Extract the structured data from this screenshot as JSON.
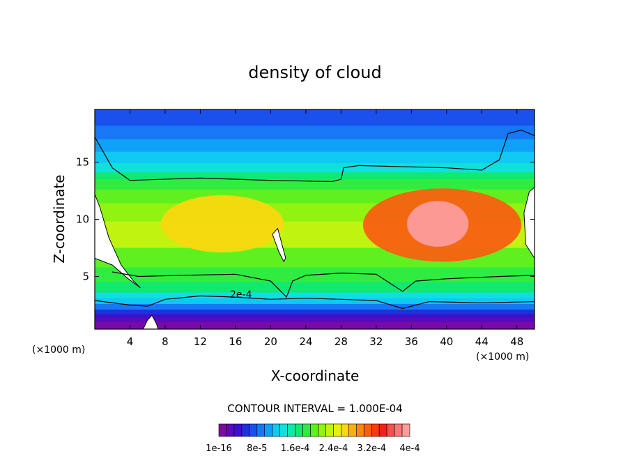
{
  "chart_data": {
    "type": "heatmap",
    "title": "density of cloud",
    "xlabel": "X-coordinate",
    "ylabel": "Z-coordinate",
    "x_unit": "(×1000 m)",
    "x_unit_right": "(×1000 m)",
    "xlim": [
      0,
      50
    ],
    "ylim": [
      0.4,
      19.6
    ],
    "x_ticks": [
      4,
      8,
      12,
      16,
      20,
      24,
      28,
      32,
      36,
      40,
      44,
      48
    ],
    "x_tick_labels": [
      "4",
      "8",
      "12",
      "16",
      "20",
      "24",
      "28",
      "32",
      "36",
      "40",
      "44",
      "48"
    ],
    "y_ticks": [
      5,
      10,
      15
    ],
    "y_tick_labels": [
      "5",
      "10",
      "15"
    ],
    "contour_label": "2e-4",
    "contour_interval_text": "CONTOUR INTERVAL = 1.000E-04",
    "colorbar": {
      "min": 0,
      "max": 0.0004,
      "tick_labels": [
        "1e-16",
        "8e-5",
        "1.6e-4",
        "2.4e-4",
        "3.2e-4",
        "4e-4"
      ],
      "colors": [
        "#7a0aa8",
        "#5a0aba",
        "#3a10cc",
        "#2030dc",
        "#1a50ec",
        "#1678f4",
        "#10a0f8",
        "#10c8f4",
        "#10e0dc",
        "#10e8a8",
        "#10e870",
        "#30ec40",
        "#60f020",
        "#90f410",
        "#c0f410",
        "#e8f010",
        "#f8d810",
        "#f8b010",
        "#f88810",
        "#f86010",
        "#f43c10",
        "#f02020",
        "#f45050",
        "#f87878",
        "#fc9c9c"
      ]
    },
    "layers": [
      {
        "z_top": 19.6,
        "value": 6e-05
      },
      {
        "z_top": 18.2,
        "value": 8e-05
      },
      {
        "z_top": 17.0,
        "value": 0.0001
      },
      {
        "z_top": 15.9,
        "value": 0.00012
      },
      {
        "z_top": 14.9,
        "value": 0.00014
      },
      {
        "z_top": 14.1,
        "value": 0.00016
      },
      {
        "z_top": 13.5,
        "value": 0.00018
      },
      {
        "z_top": 12.6,
        "value": 0.0002
      },
      {
        "z_top": 11.4,
        "value": 0.00022
      },
      {
        "z_top": 9.8,
        "value": 0.00024
      },
      {
        "z_top": 7.5,
        "value": 0.0002
      },
      {
        "z_top": 5.8,
        "value": 0.00018
      },
      {
        "z_top": 4.5,
        "value": 0.00016
      },
      {
        "z_top": 3.6,
        "value": 0.00014
      },
      {
        "z_top": 3.1,
        "value": 0.00011
      },
      {
        "z_top": 2.6,
        "value": 8e-05
      },
      {
        "z_top": 2.1,
        "value": 5e-05
      },
      {
        "z_top": 1.7,
        "value": 3e-05
      },
      {
        "z_top": 1.4,
        "value": 1e-05
      },
      {
        "z_top": 1.0,
        "value": 0.0
      }
    ],
    "blobs": [
      {
        "x": 39.5,
        "z": 9.5,
        "rx": 9,
        "rz": 3.2,
        "value": 0.00032
      },
      {
        "x": 39.0,
        "z": 9.6,
        "rx": 3.5,
        "rz": 2.0,
        "value": 0.0004
      },
      {
        "x": 14.5,
        "z": 9.6,
        "rx": 7,
        "rz": 2.5,
        "value": 0.00026
      }
    ],
    "regions": {
      "white_left": [
        [
          0,
          12.2
        ],
        [
          0.6,
          11.0
        ],
        [
          1.6,
          8.4
        ],
        [
          3.0,
          6.0
        ],
        [
          4.4,
          4.6
        ],
        [
          5.2,
          4.0
        ],
        [
          3.8,
          4.8
        ],
        [
          2.0,
          6.0
        ],
        [
          0,
          6.6
        ]
      ],
      "white_right": [
        [
          49.4,
          12.4
        ],
        [
          50,
          12.8
        ],
        [
          50,
          6.6
        ],
        [
          49.0,
          7.8
        ],
        [
          48.8,
          10.6
        ]
      ],
      "white_mid": [
        [
          20.2,
          8.7
        ],
        [
          20.8,
          9.2
        ],
        [
          21.7,
          6.6
        ],
        [
          21.5,
          6.3
        ],
        [
          20.9,
          7.2
        ]
      ],
      "contour_upper": [
        [
          0,
          17.2
        ],
        [
          2.0,
          14.5
        ],
        [
          4.0,
          13.4
        ],
        [
          12.0,
          13.6
        ],
        [
          20.0,
          13.4
        ],
        [
          27.0,
          13.3
        ],
        [
          28.0,
          13.5
        ],
        [
          28.3,
          14.5
        ],
        [
          30.0,
          14.7
        ],
        [
          40.0,
          14.5
        ],
        [
          44.0,
          14.3
        ],
        [
          46.0,
          15.2
        ],
        [
          47.0,
          17.5
        ],
        [
          48.5,
          17.8
        ],
        [
          50,
          17.3
        ]
      ],
      "contour_mid": [
        [
          2.0,
          5.4
        ],
        [
          5.0,
          5.0
        ],
        [
          10.0,
          5.1
        ],
        [
          16.0,
          5.2
        ],
        [
          20.0,
          4.6
        ],
        [
          21.8,
          3.2
        ],
        [
          22.5,
          4.6
        ],
        [
          24.0,
          5.1
        ],
        [
          28.0,
          5.3
        ],
        [
          32.0,
          5.2
        ],
        [
          34.0,
          4.2
        ],
        [
          35.0,
          3.7
        ],
        [
          36.5,
          4.6
        ],
        [
          40.0,
          4.8
        ],
        [
          46.0,
          5.0
        ],
        [
          50,
          5.1
        ]
      ],
      "contour_low": [
        [
          0,
          2.9
        ],
        [
          4.0,
          2.5
        ],
        [
          6.0,
          2.4
        ],
        [
          8.0,
          3.0
        ],
        [
          12.0,
          3.3
        ],
        [
          16.0,
          3.2
        ],
        [
          20.0,
          3.0
        ],
        [
          24.0,
          3.1
        ],
        [
          28.0,
          3.0
        ],
        [
          32.0,
          2.9
        ],
        [
          35.0,
          2.2
        ],
        [
          38.0,
          2.8
        ],
        [
          44.0,
          2.7
        ],
        [
          50,
          2.8
        ]
      ],
      "ground_white": [
        [
          5.5,
          0.4
        ],
        [
          6.0,
          1.2
        ],
        [
          6.5,
          1.6
        ],
        [
          7.0,
          0.9
        ],
        [
          7.2,
          0.4
        ]
      ]
    }
  }
}
